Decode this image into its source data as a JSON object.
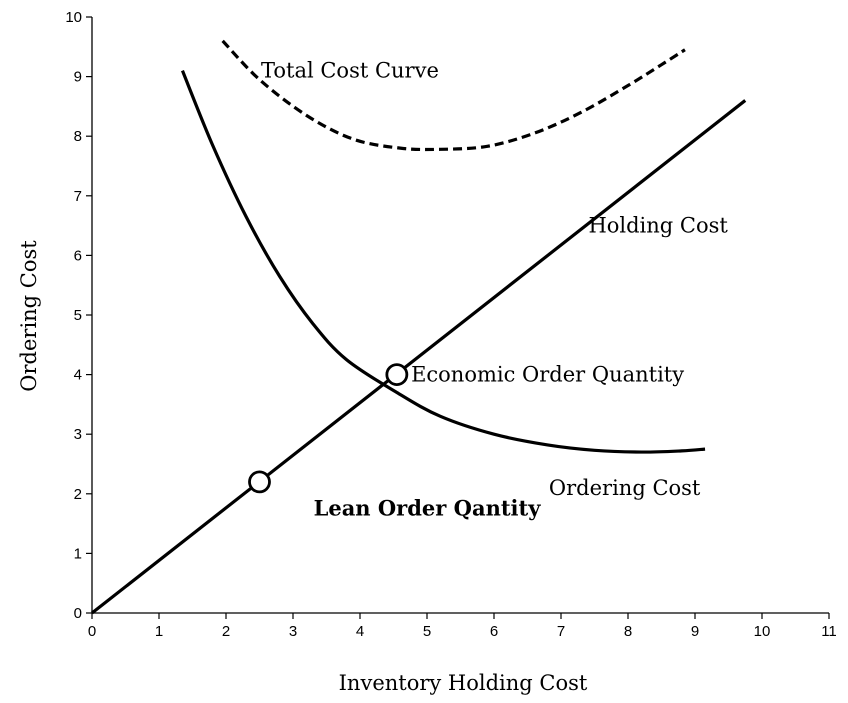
{
  "chart_data": {
    "type": "line",
    "xlabel": "Inventory Holding Cost",
    "ylabel": "Ordering Cost",
    "xlim": [
      0,
      11
    ],
    "ylim": [
      0,
      10
    ],
    "xticks": [
      0,
      1,
      2,
      3,
      4,
      5,
      6,
      7,
      8,
      9,
      10,
      11
    ],
    "yticks": [
      0,
      1,
      2,
      3,
      4,
      5,
      6,
      7,
      8,
      9,
      10
    ],
    "grid": false,
    "series": [
      {
        "name": "Holding Cost",
        "style": "solid",
        "x": [
          0,
          9.75
        ],
        "y": [
          0,
          8.6
        ]
      },
      {
        "name": "Ordering Cost",
        "style": "solid",
        "x": [
          1.35,
          1.8,
          2.3,
          2.8,
          3.3,
          3.8,
          4.55,
          5.2,
          6.0,
          6.8,
          7.5,
          8.2,
          8.8,
          9.15
        ],
        "y": [
          9.1,
          7.85,
          6.65,
          5.65,
          4.85,
          4.25,
          3.7,
          3.3,
          3.0,
          2.82,
          2.73,
          2.7,
          2.72,
          2.75
        ]
      },
      {
        "name": "Total Cost Curve",
        "style": "dashed",
        "x": [
          1.95,
          2.5,
          3.2,
          3.9,
          4.6,
          5.2,
          5.9,
          6.6,
          7.3,
          8.0,
          8.5,
          8.85
        ],
        "y": [
          9.6,
          8.95,
          8.35,
          7.95,
          7.8,
          7.78,
          7.83,
          8.05,
          8.4,
          8.85,
          9.2,
          9.45
        ]
      }
    ],
    "markers": [
      {
        "name": "Economic Order Quantity",
        "x": 4.55,
        "y": 4.0
      },
      {
        "name": "Lean Order Qantity",
        "x": 2.5,
        "y": 2.2
      }
    ],
    "annotations": [
      {
        "key": "total",
        "text": "Total Cost Curve",
        "x": 3.85,
        "y": 9.1,
        "bold": false
      },
      {
        "key": "holding",
        "text": "Holding Cost",
        "x": 8.45,
        "y": 6.5,
        "bold": false
      },
      {
        "key": "eoq",
        "text": "Economic Order Quantity",
        "x": 6.8,
        "y": 4.0,
        "bold": false
      },
      {
        "key": "ordering",
        "text": "Ordering Cost",
        "x": 7.95,
        "y": 2.1,
        "bold": false
      },
      {
        "key": "lean",
        "text": "Lean Order Qantity",
        "x": 5.0,
        "y": 1.75,
        "bold": true
      }
    ]
  }
}
